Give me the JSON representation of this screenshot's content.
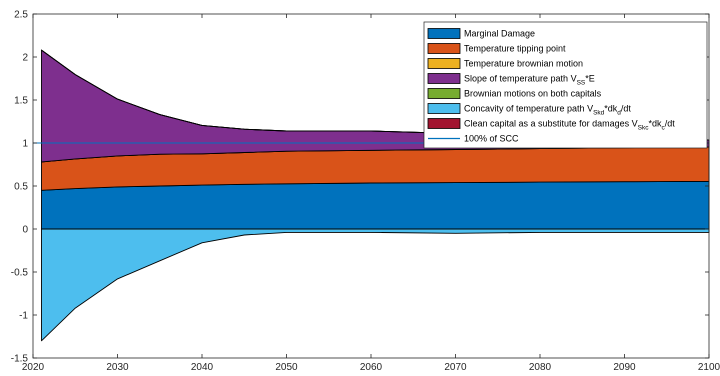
{
  "chart_data": {
    "type": "area",
    "title": "",
    "xlabel": "",
    "ylabel": "",
    "xlim": [
      2020,
      2100
    ],
    "ylim": [
      -1.5,
      2.5
    ],
    "xticks": [
      2020,
      2030,
      2040,
      2050,
      2060,
      2070,
      2080,
      2090,
      2100
    ],
    "yticks": [
      -1.5,
      -1,
      -0.5,
      0,
      0.5,
      1,
      1.5,
      2,
      2.5
    ],
    "x": [
      2021,
      2025,
      2030,
      2035,
      2040,
      2045,
      2050,
      2060,
      2070,
      2080,
      2090,
      2100
    ],
    "series": [
      {
        "name": "Marginal Damage",
        "color": "#0072BD",
        "values": [
          0.45,
          0.47,
          0.49,
          0.5,
          0.51,
          0.52,
          0.525,
          0.535,
          0.54,
          0.545,
          0.55,
          0.555
        ]
      },
      {
        "name": "Temperature tipping point",
        "color": "#D95319",
        "values": [
          0.33,
          0.345,
          0.36,
          0.37,
          0.365,
          0.37,
          0.38,
          0.38,
          0.385,
          0.39,
          0.395,
          0.4
        ]
      },
      {
        "name": "Temperature brownian motion",
        "color": "#EDB120",
        "values": [
          0,
          0,
          0,
          0,
          0,
          0,
          0,
          0,
          0,
          0,
          0,
          0
        ]
      },
      {
        "name": "Slope of temperature path",
        "color": "#7E2F8E",
        "values": [
          1.3,
          0.98,
          0.66,
          0.46,
          0.33,
          0.27,
          0.235,
          0.225,
          0.185,
          0.14,
          0.105,
          0.08
        ]
      },
      {
        "name": "Brownian motions on both capitals",
        "color": "#77AC30",
        "values": [
          0,
          0,
          0,
          0,
          0,
          0,
          0,
          0,
          0,
          0,
          0,
          0
        ]
      },
      {
        "name": "Concavity of temperature path",
        "color": "#4DBEEE",
        "values": [
          -1.3,
          -0.92,
          -0.58,
          -0.37,
          -0.16,
          -0.07,
          -0.04,
          -0.04,
          -0.05,
          -0.04,
          -0.04,
          -0.04
        ]
      },
      {
        "name": "Clean capital as a substitute for damages",
        "color": "#A2142F",
        "values": [
          0,
          0,
          0,
          0,
          0,
          0,
          0,
          0,
          0,
          0,
          0,
          0
        ]
      }
    ],
    "reference_line": {
      "name": "100% of SCC",
      "y": 1,
      "color": "#0072BD"
    },
    "grid": false,
    "legend_position": "top-right"
  },
  "legend": [
    {
      "color": "#0072BD",
      "type": "patch",
      "parts": [
        {
          "t": "Marginal Damage"
        }
      ]
    },
    {
      "color": "#D95319",
      "type": "patch",
      "parts": [
        {
          "t": "Temperature tipping point"
        }
      ]
    },
    {
      "color": "#EDB120",
      "type": "patch",
      "parts": [
        {
          "t": "Temperature brownian motion"
        }
      ]
    },
    {
      "color": "#7E2F8E",
      "type": "patch",
      "parts": [
        {
          "t": "Slope of temperature path V"
        },
        {
          "t": "SS",
          "sub": true
        },
        {
          "t": "*E"
        }
      ]
    },
    {
      "color": "#77AC30",
      "type": "patch",
      "parts": [
        {
          "t": "Brownian motions on both capitals"
        }
      ]
    },
    {
      "color": "#4DBEEE",
      "type": "patch",
      "parts": [
        {
          "t": "Concavity of temperature path V"
        },
        {
          "t": "Skd",
          "sub": true
        },
        {
          "t": "*dk"
        },
        {
          "t": "d",
          "sub": true
        },
        {
          "t": "/dt"
        }
      ]
    },
    {
      "color": "#A2142F",
      "type": "patch",
      "parts": [
        {
          "t": "Clean capital as a substitute for damages V"
        },
        {
          "t": "Skc",
          "sub": true
        },
        {
          "t": "*dk"
        },
        {
          "t": "c",
          "sub": true
        },
        {
          "t": "/dt"
        }
      ]
    },
    {
      "color": "#0072BD",
      "type": "line",
      "parts": [
        {
          "t": "100% of SCC"
        }
      ]
    }
  ]
}
